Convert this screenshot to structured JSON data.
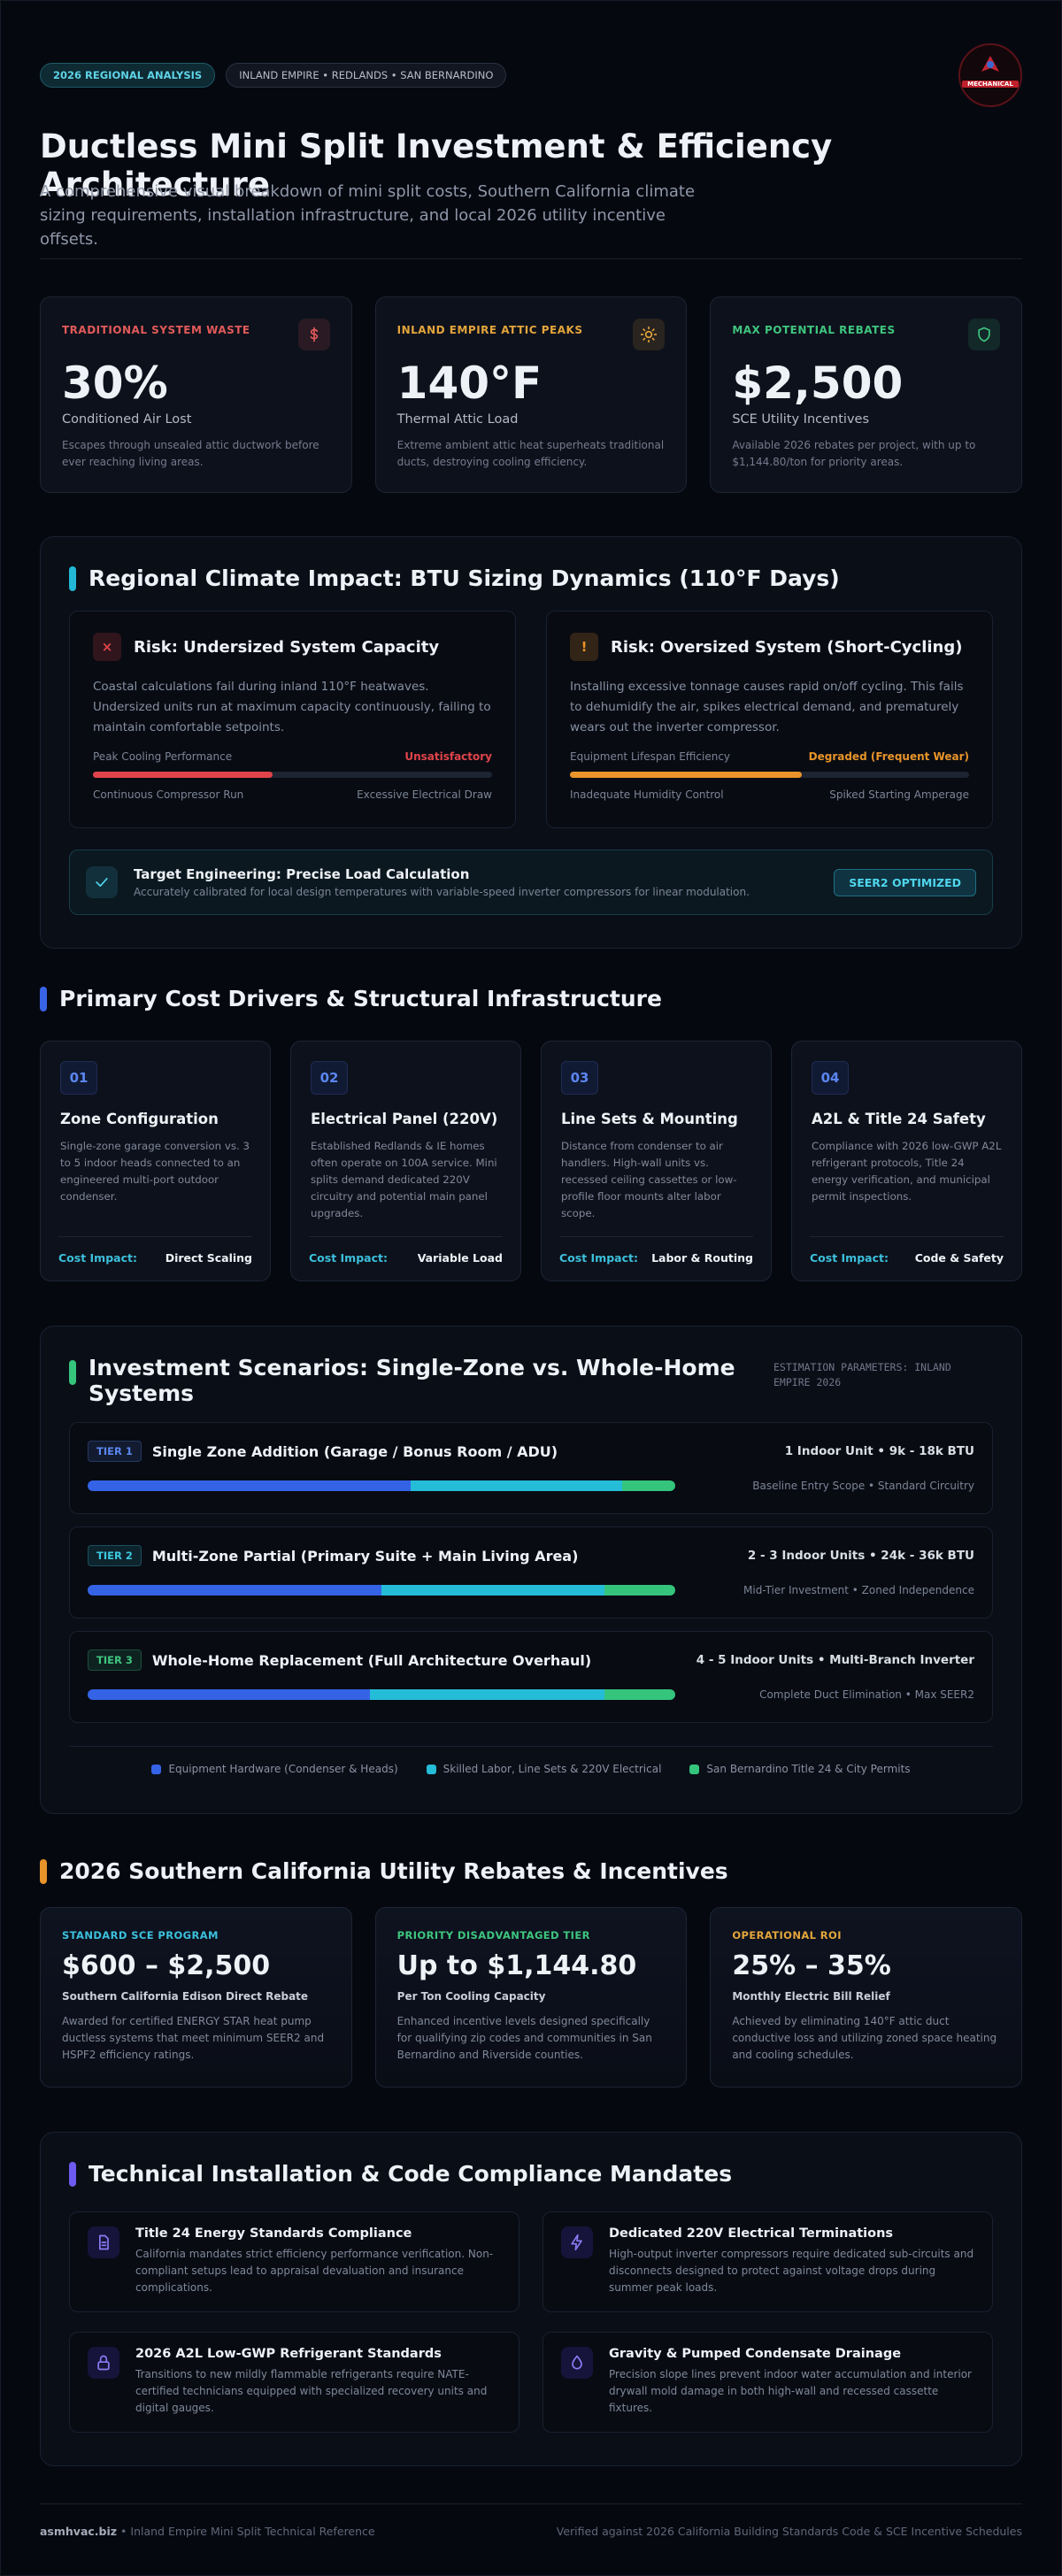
{
  "header": {
    "badges": [
      "2026 REGIONAL ANALYSIS",
      "INLAND EMPIRE • REDLANDS • SAN BERNARDINO"
    ],
    "logo_text": "MECHANICAL",
    "title": "Ductless Mini Split Investment & Efficiency Architecture",
    "subtitle": "A comprehensive visual breakdown of mini split costs, Southern California climate sizing requirements, installation infrastructure, and local 2026 utility incentive offsets."
  },
  "stats": [
    {
      "label": "TRADITIONAL SYSTEM WASTE",
      "value": "30%",
      "caption": "Conditioned Air Lost",
      "description": "Escapes through unsealed attic ductwork before ever reaching living areas.",
      "color": "#e25a5a"
    },
    {
      "label": "INLAND EMPIRE ATTIC PEAKS",
      "value": "140°F",
      "caption": "Thermal Attic Load",
      "description": "Extreme ambient attic heat superheats traditional ducts, destroying cooling efficiency.",
      "color": "#e3a53c"
    },
    {
      "label": "MAX POTENTIAL REBATES",
      "value": "$2,500",
      "caption": "SCE Utility Incentives",
      "description": "Available 2026 rebates per project, with up to $1,144.80/ton for priority areas.",
      "color": "#3fc57f"
    }
  ],
  "climate": {
    "title": "Regional Climate Impact: BTU Sizing Dynamics (110°F Days)",
    "risks": [
      {
        "icon": "×",
        "title": "Risk: Undersized System Capacity",
        "description": "Coastal calculations fail during inland 110°F heatwaves. Undersized units run at maximum capacity continuously, failing to maintain comfortable setpoints.",
        "meter_label": "Peak Cooling Performance",
        "meter_status": "Unsatisfactory",
        "meter_value": 45,
        "color": "#e0444a",
        "left_note": "Continuous Compressor Run",
        "right_note": "Excessive Electrical Draw"
      },
      {
        "icon": "!",
        "title": "Risk: Oversized System (Short-Cycling)",
        "description": "Installing excessive tonnage causes rapid on/off cycling. This fails to dehumidify the air, spikes electrical demand, and prematurely wears out the inverter compressor.",
        "meter_label": "Equipment Lifespan Efficiency",
        "meter_status": "Degraded (Frequent Wear)",
        "meter_value": 58,
        "color": "#e8942a",
        "left_note": "Inadequate Humidity Control",
        "right_note": "Spiked Starting Amperage"
      }
    ],
    "target": {
      "title": "Target Engineering: Precise Load Calculation",
      "description": "Accurately calibrated for local design temperatures with variable-speed inverter compressors for linear modulation.",
      "badge": "SEER2 OPTIMIZED"
    }
  },
  "cost_drivers": {
    "title": "Primary Cost Drivers & Structural Infrastructure",
    "items": [
      {
        "number": "01",
        "title": "Zone Configuration",
        "description": "Single-zone garage conversion vs. 3 to 5 indoor heads connected to an engineered multi-port outdoor condenser.",
        "impact_label": "Cost Impact:",
        "impact": "Direct Scaling"
      },
      {
        "number": "02",
        "title": "Electrical Panel (220V)",
        "description": "Established Redlands & IE homes often operate on 100A service. Mini splits demand dedicated 220V circuitry and potential main panel upgrades.",
        "impact_label": "Cost Impact:",
        "impact": "Variable Load"
      },
      {
        "number": "03",
        "title": "Line Sets & Mounting",
        "description": "Distance from condenser to air handlers. High-wall units vs. recessed ceiling cassettes or low-profile floor mounts alter labor scope.",
        "impact_label": "Cost Impact:",
        "impact": "Labor & Routing"
      },
      {
        "number": "04",
        "title": "A2L & Title 24 Safety",
        "description": "Compliance with 2026 low-GWP A2L refrigerant protocols, Title 24 energy verification, and municipal permit inspections.",
        "impact_label": "Cost Impact:",
        "impact": "Code & Safety"
      }
    ]
  },
  "investment": {
    "title": "Investment Scenarios: Single-Zone vs. Whole-Home Systems",
    "parameters": "ESTIMATION PARAMETERS: INLAND EMPIRE 2026",
    "series": [
      {
        "name": "Equipment Hardware (Condenser & Heads)",
        "color": "#3563e6"
      },
      {
        "name": "Skilled Labor, Line Sets & 220V Electrical",
        "color": "#25bcd8"
      },
      {
        "name": "San Bernardino Title 24 & City Permits",
        "color": "#35c47c"
      }
    ],
    "tiers": [
      {
        "tier": "TIER 1",
        "color": "#5b86f0",
        "title": "Single Zone Addition (Garage / Bonus Room / ADU)",
        "units": "1 Indoor Unit • 9k - 18k BTU",
        "scope": "Baseline Entry Scope • Standard Circuitry",
        "shares": [
          55,
          36,
          9
        ]
      },
      {
        "tier": "TIER 2",
        "color": "#3cc8e0",
        "title": "Multi-Zone Partial (Primary Suite + Main Living Area)",
        "units": "2 - 3 Indoor Units • 24k - 36k BTU",
        "scope": "Mid-Tier Investment • Zoned Independence",
        "shares": [
          50,
          38,
          12
        ]
      },
      {
        "tier": "TIER 3",
        "color": "#3fc57f",
        "title": "Whole-Home Replacement (Full Architecture Overhaul)",
        "units": "4 - 5 Indoor Units • Multi-Branch Inverter",
        "scope": "Complete Duct Elimination • Max SEER2",
        "shares": [
          48,
          40,
          12
        ]
      }
    ]
  },
  "rebates": {
    "title": "2026 Southern California Utility Rebates & Incentives",
    "items": [
      {
        "label": "STANDARD SCE PROGRAM",
        "color": "#3cc0dc",
        "amount": "$600 – $2,500",
        "subtitle": "Southern California Edison Direct Rebate",
        "description": "Awarded for certified ENERGY STAR heat pump ductless systems that meet minimum SEER2 and HSPF2 efficiency ratings."
      },
      {
        "label": "PRIORITY DISADVANTAGED TIER",
        "color": "#3fc57f",
        "amount": "Up to $1,144.80",
        "subtitle": "Per Ton Cooling Capacity",
        "description": "Enhanced incentive levels designed specifically for qualifying zip codes and communities in San Bernardino and Riverside counties."
      },
      {
        "label": "OPERATIONAL ROI",
        "color": "#e3a53c",
        "amount": "25% – 35%",
        "subtitle": "Monthly Electric Bill Relief",
        "description": "Achieved by eliminating 140°F attic duct conductive loss and utilizing zoned space heating and cooling schedules."
      }
    ]
  },
  "technical": {
    "title": "Technical Installation & Code Compliance Mandates",
    "items": [
      {
        "title": "Title 24 Energy Standards Compliance",
        "description": "California mandates strict efficiency performance verification. Non-compliant setups lead to appraisal devaluation and insurance complications."
      },
      {
        "title": "Dedicated 220V Electrical Terminations",
        "description": "High-output inverter compressors require dedicated sub-circuits and disconnects designed to protect against voltage drops during summer peak loads."
      },
      {
        "title": "2026 A2L Low-GWP Refrigerant Standards",
        "description": "Transitions to new mildly flammable refrigerants require NATE-certified technicians equipped with specialized recovery units and digital gauges."
      },
      {
        "title": "Gravity & Pumped Condensate Drainage",
        "description": "Precision slope lines prevent indoor water accumulation and interior drywall mold damage in both high-wall and recessed cassette fixtures."
      }
    ]
  },
  "footer": {
    "site": "asmhvac.biz",
    "reference": "• Inland Empire Mini Split Technical Reference",
    "verification": "Verified against 2026 California Building Standards Code & SCE Incentive Schedules"
  }
}
